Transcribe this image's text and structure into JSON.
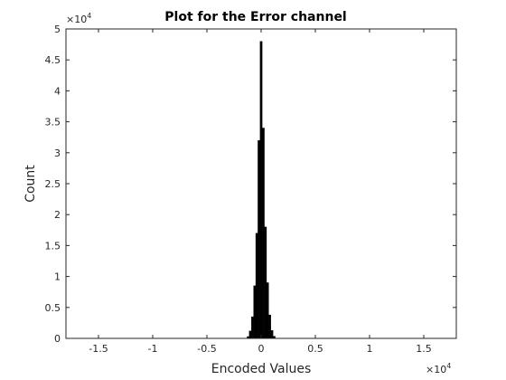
{
  "chart_data": {
    "type": "bar",
    "title": "Plot for the Error channel",
    "xlabel": "Encoded Values",
    "ylabel": "Count",
    "x_multiplier": {
      "base": "×10",
      "exponent": "4"
    },
    "y_multiplier": {
      "base": "×10",
      "exponent": "4"
    },
    "xlim": [
      -18000,
      18000
    ],
    "ylim": [
      0,
      50000
    ],
    "xticks": [
      -15000,
      -10000,
      -5000,
      0,
      5000,
      10000,
      15000
    ],
    "xtick_labels": [
      "-1.5",
      "-1",
      "-0.5",
      "0",
      "0.5",
      "1",
      "1.5"
    ],
    "yticks": [
      0,
      5000,
      10000,
      15000,
      20000,
      25000,
      30000,
      35000,
      40000,
      45000,
      50000
    ],
    "ytick_labels": [
      "0",
      "0.5",
      "1",
      "1.5",
      "2",
      "2.5",
      "3",
      "3.5",
      "4",
      "4.5",
      "5"
    ],
    "grid": false,
    "legend": "none",
    "bar_color": "#000000",
    "bins": {
      "x": [
        -1200,
        -1000,
        -800,
        -600,
        -400,
        -200,
        0,
        200,
        400,
        600,
        800,
        1000,
        1200
      ],
      "width": 200,
      "values": [
        300,
        1200,
        3500,
        8500,
        17000,
        32000,
        48000,
        34000,
        18000,
        9000,
        3800,
        1300,
        350
      ]
    }
  }
}
